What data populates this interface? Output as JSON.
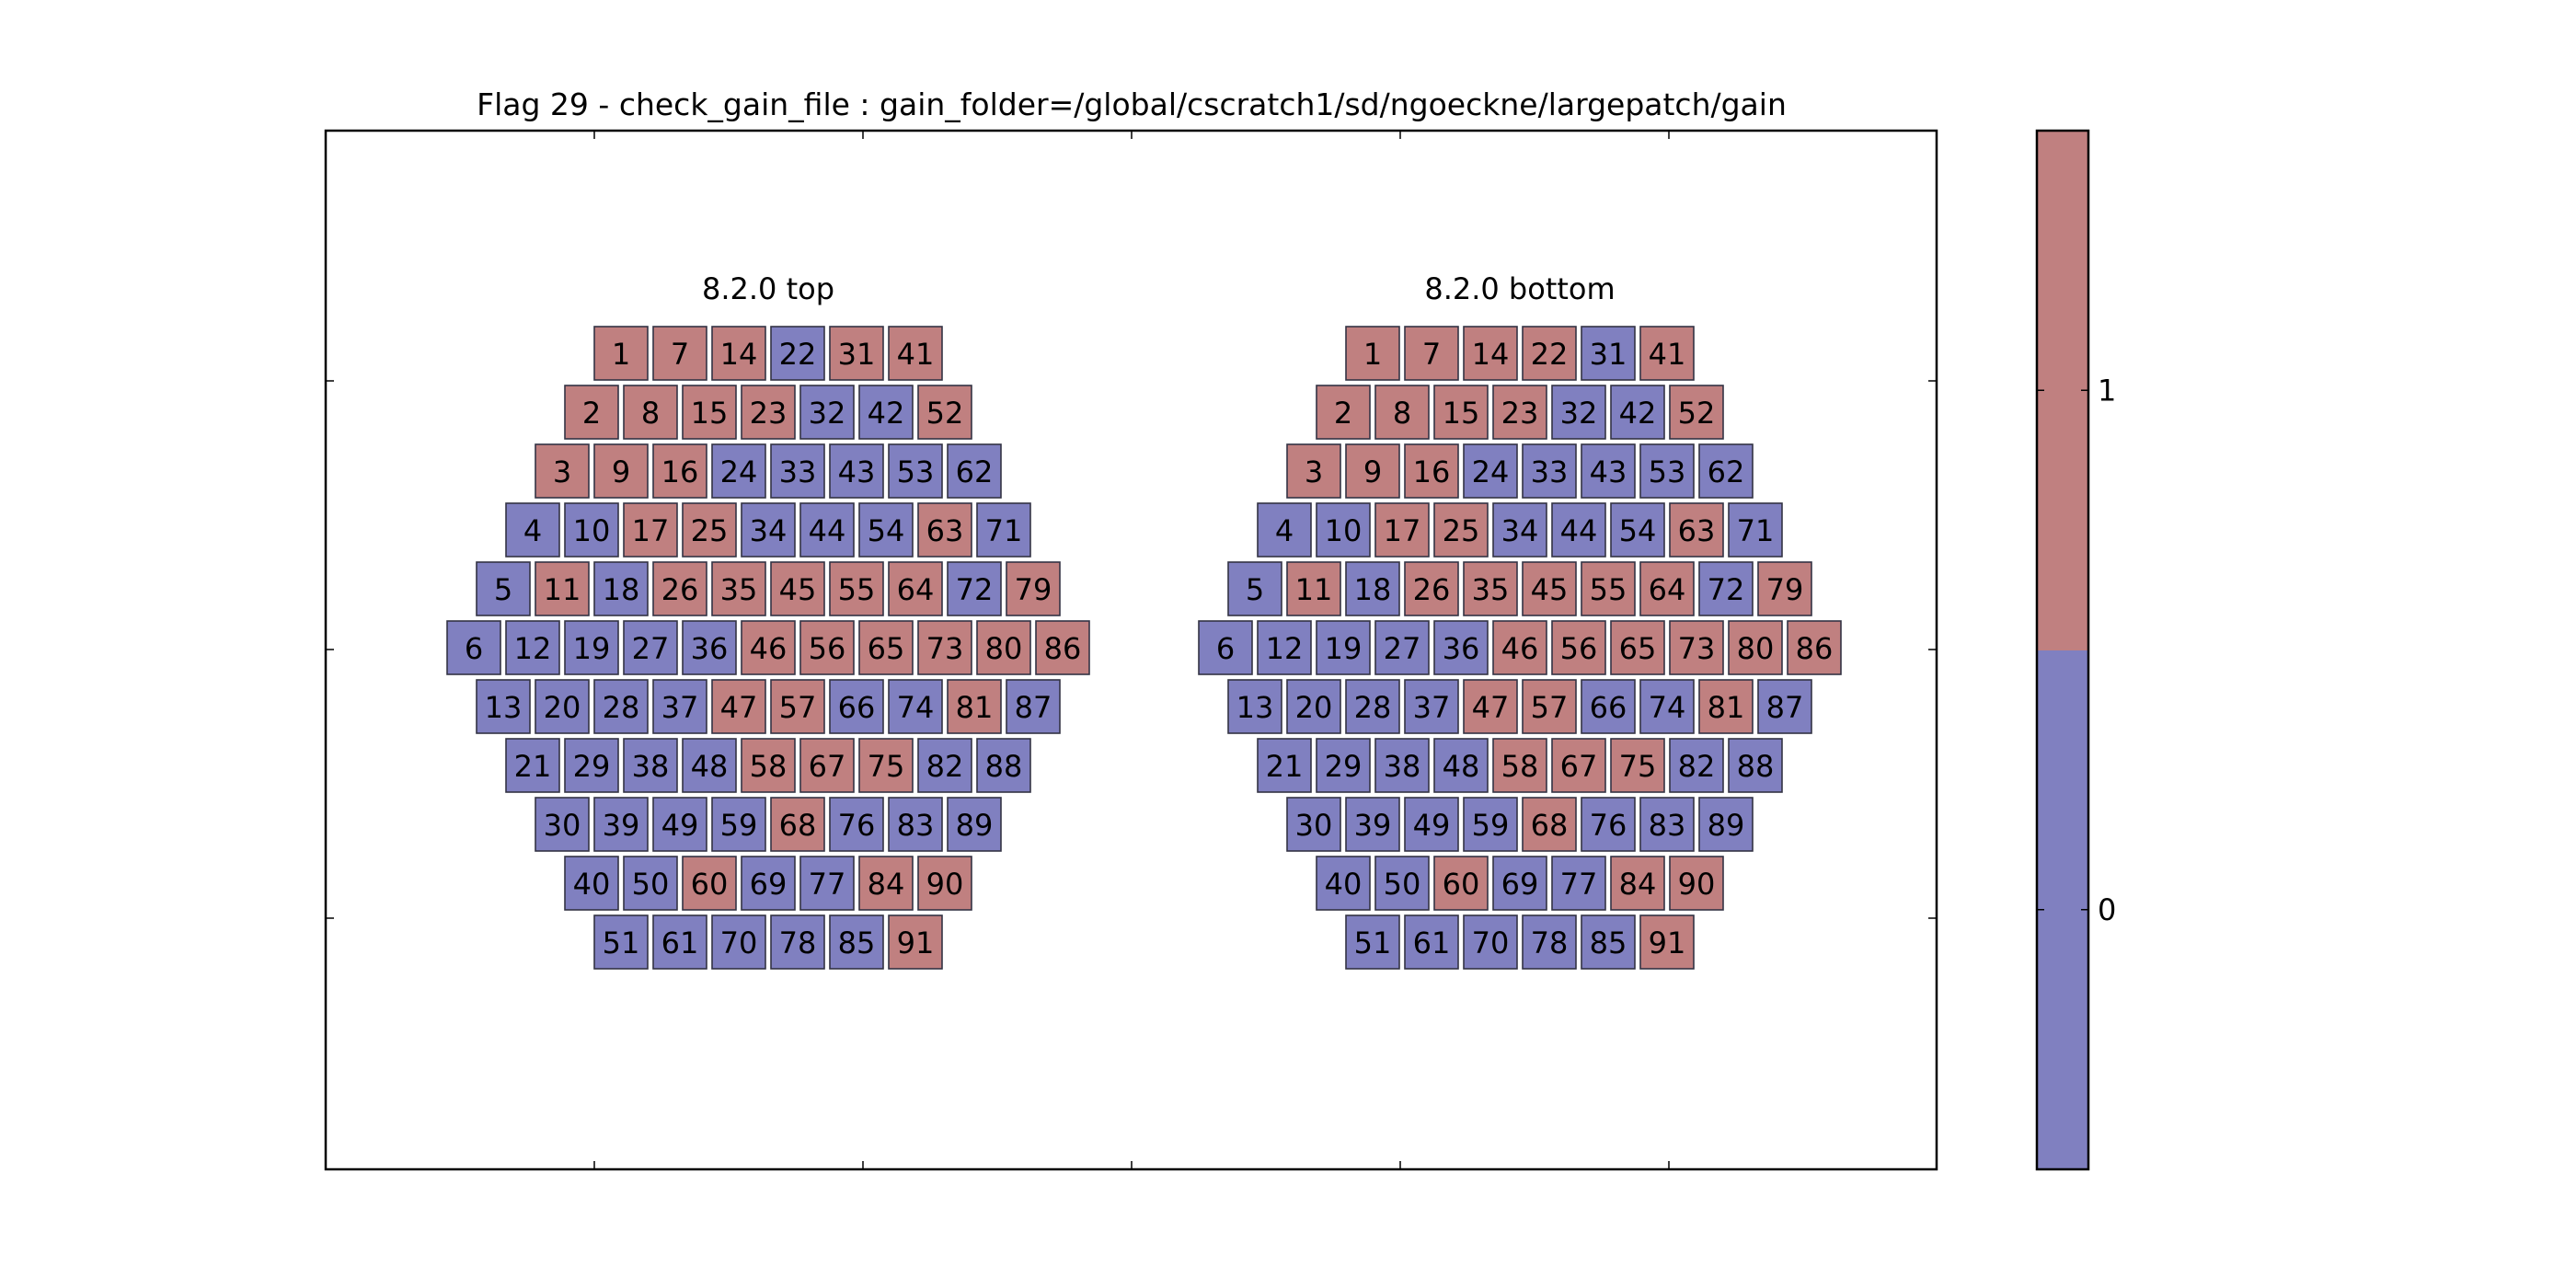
{
  "chart_data": {
    "type": "heatmap",
    "title": "Flag 29 - check_gain_file : gain_folder=/global/cscratch1/sd/ngoeckne/largepatch/gain",
    "colors": {
      "0": "#8080c0",
      "1": "#c08080"
    },
    "colorbar": {
      "ticks": [
        0,
        1
      ],
      "range": [
        -0.5,
        1.5
      ]
    },
    "rows": [
      [
        1,
        7,
        14,
        22,
        31,
        41
      ],
      [
        2,
        8,
        15,
        23,
        32,
        42,
        52
      ],
      [
        3,
        9,
        16,
        24,
        33,
        43,
        53,
        62
      ],
      [
        4,
        10,
        17,
        25,
        34,
        44,
        54,
        63,
        71
      ],
      [
        5,
        11,
        18,
        26,
        35,
        45,
        55,
        64,
        72,
        79
      ],
      [
        6,
        12,
        19,
        27,
        36,
        46,
        56,
        65,
        73,
        80,
        86
      ],
      [
        13,
        20,
        28,
        37,
        47,
        57,
        66,
        74,
        81,
        87
      ],
      [
        21,
        29,
        38,
        48,
        58,
        67,
        75,
        82,
        88
      ],
      [
        30,
        39,
        49,
        59,
        68,
        76,
        83,
        89
      ],
      [
        40,
        50,
        60,
        69,
        77,
        84,
        90
      ],
      [
        51,
        61,
        70,
        78,
        85,
        91
      ]
    ],
    "panels": [
      {
        "title": "8.2.0 top",
        "values": [
          [
            1,
            1,
            1,
            0,
            1,
            1
          ],
          [
            1,
            1,
            1,
            1,
            0,
            0,
            1
          ],
          [
            1,
            1,
            1,
            0,
            0,
            0,
            0,
            0
          ],
          [
            0,
            0,
            1,
            1,
            0,
            0,
            0,
            1,
            0
          ],
          [
            0,
            1,
            0,
            1,
            1,
            1,
            1,
            1,
            0,
            1
          ],
          [
            0,
            0,
            0,
            0,
            0,
            1,
            1,
            1,
            1,
            1,
            1
          ],
          [
            0,
            0,
            0,
            0,
            1,
            1,
            0,
            0,
            1,
            0
          ],
          [
            0,
            0,
            0,
            0,
            1,
            1,
            1,
            0,
            0
          ],
          [
            0,
            0,
            0,
            0,
            1,
            0,
            0,
            0
          ],
          [
            0,
            0,
            1,
            0,
            0,
            1,
            1
          ],
          [
            0,
            0,
            0,
            0,
            0,
            1
          ]
        ]
      },
      {
        "title": "8.2.0 bottom",
        "values": [
          [
            1,
            1,
            1,
            1,
            0,
            1
          ],
          [
            1,
            1,
            1,
            1,
            0,
            0,
            1
          ],
          [
            1,
            1,
            1,
            0,
            0,
            0,
            0,
            0
          ],
          [
            0,
            0,
            1,
            1,
            0,
            0,
            0,
            1,
            0
          ],
          [
            0,
            1,
            0,
            1,
            1,
            1,
            1,
            1,
            0,
            1
          ],
          [
            0,
            0,
            0,
            0,
            0,
            1,
            1,
            1,
            1,
            1,
            1
          ],
          [
            0,
            0,
            0,
            0,
            1,
            1,
            0,
            0,
            1,
            0
          ],
          [
            0,
            0,
            0,
            0,
            1,
            1,
            1,
            0,
            0
          ],
          [
            0,
            0,
            0,
            0,
            1,
            0,
            0,
            0
          ],
          [
            0,
            0,
            1,
            0,
            0,
            1,
            1
          ],
          [
            0,
            0,
            0,
            0,
            0,
            1
          ]
        ]
      }
    ]
  }
}
